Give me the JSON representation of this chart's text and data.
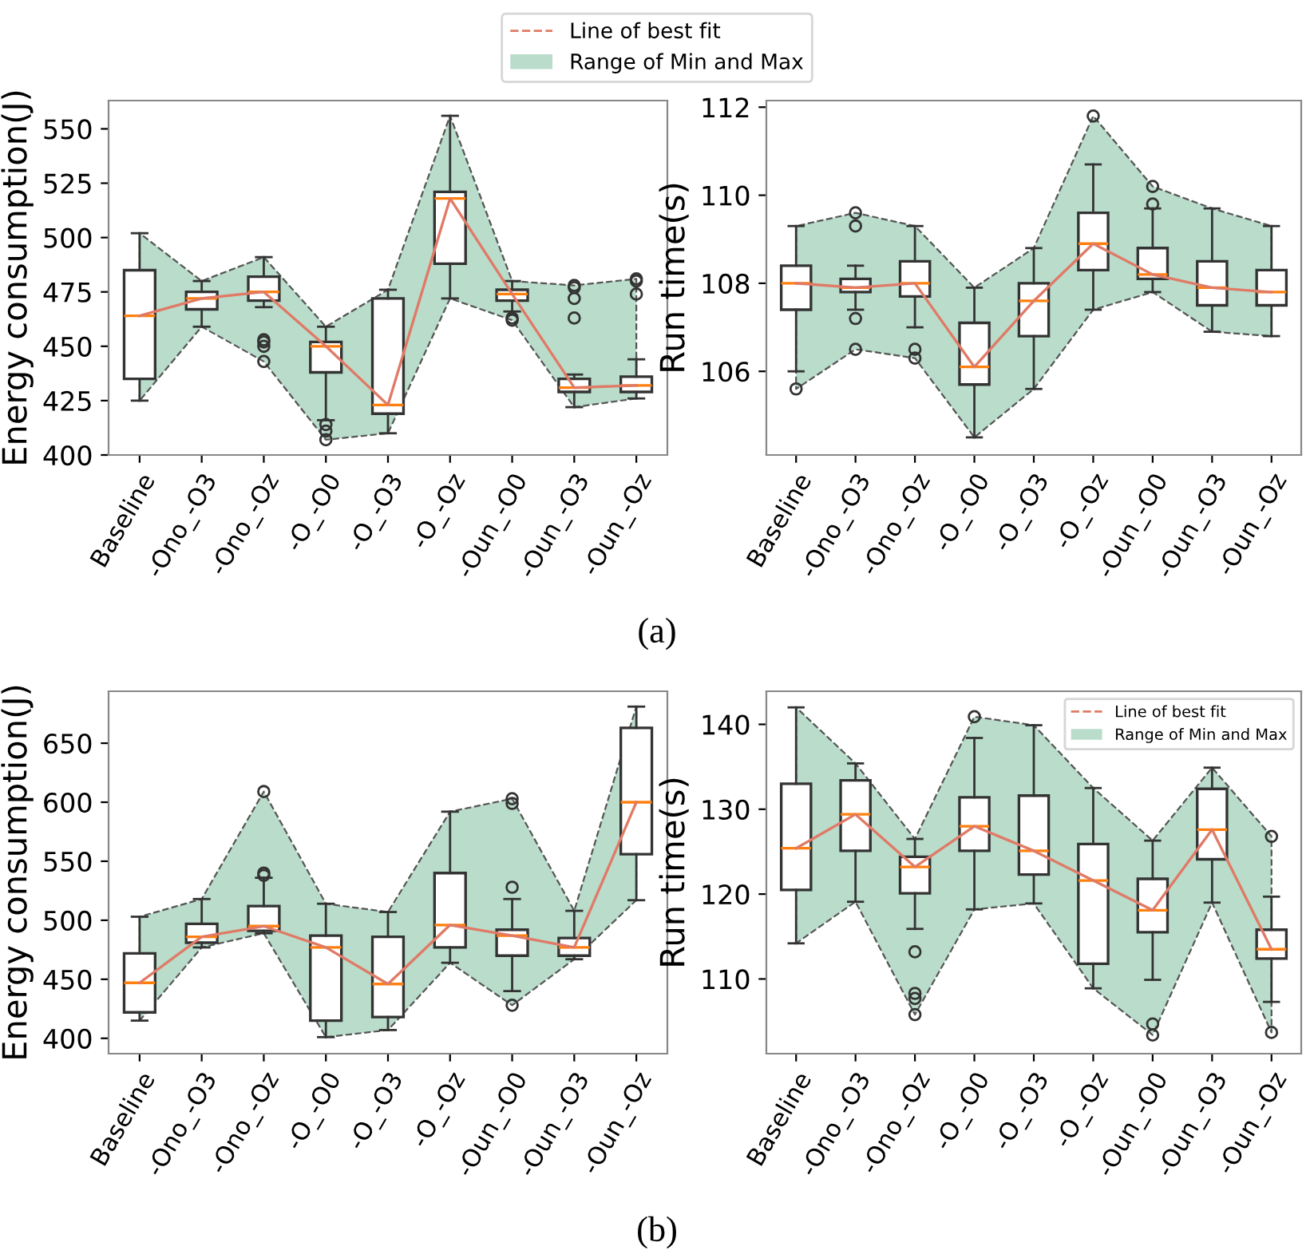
{
  "chart_data": [
    {
      "type": "box",
      "ylabel": "Energy consumption(J)",
      "legend": "top",
      "annotations": [
        "(a)",
        {
          "text": "Range of Min and Max"
        }
      ],
      "categories": [
        "Baseline",
        "-Ono_-O3",
        "-Ono_-Oz",
        "-O_-O0",
        "-O_-O3",
        "-O_-Oz",
        "-Oun_-O0",
        "-Oun_-O3",
        "-Oun_-Oz"
      ],
      "ylim": [
        400,
        563
      ],
      "yticks": [
        400,
        425,
        450,
        475,
        500,
        525,
        550
      ],
      "boxes": [
        {
          "low": 425,
          "q1": 435,
          "median": 464,
          "q3": 485,
          "high": 502
        },
        {
          "low": 459,
          "q1": 467,
          "median": 472,
          "q3": 475,
          "high": 480
        },
        {
          "low": 468,
          "q1": 471,
          "median": 475,
          "q3": 482,
          "high": 491,
          "outliers": [
            453,
            452,
            450,
            443
          ]
        },
        {
          "low": 416,
          "q1": 438,
          "median": 450,
          "q3": 452,
          "high": 459,
          "outliers": [
            414,
            411,
            407
          ]
        },
        {
          "low": 410,
          "q1": 419,
          "median": 423,
          "q3": 472,
          "high": 476
        },
        {
          "low": 472,
          "q1": 488,
          "median": 518,
          "q3": 521,
          "high": 556
        },
        {
          "low": 466,
          "q1": 471,
          "median": 474,
          "q3": 476,
          "high": 480,
          "outliers": [
            463,
            462
          ]
        },
        {
          "low": 422,
          "q1": 429,
          "median": 431,
          "q3": 435,
          "high": 437,
          "outliers": [
            478,
            477,
            472,
            463
          ]
        },
        {
          "low": 426,
          "q1": 429,
          "median": 432,
          "q3": 436,
          "high": 444,
          "outliers": [
            481,
            480,
            474
          ]
        }
      ],
      "series": [
        {
          "type": "line",
          "name": "Line of best fit",
          "color": "#e07a66",
          "values": [
            464,
            472,
            475,
            450,
            423,
            518,
            474,
            431,
            432
          ],
          "lower": [
            425,
            459,
            443,
            407,
            410,
            472,
            462,
            422,
            426
          ],
          "upper": [
            502,
            480,
            491,
            459,
            476,
            556,
            480,
            478,
            481
          ]
        }
      ]
    },
    {
      "type": "box",
      "ylabel": "Run time(s)",
      "categories": [
        "Baseline",
        "-Ono_-O3",
        "-Ono_-Oz",
        "-O_-O0",
        "-O_-O3",
        "-O_-Oz",
        "-Oun_-O0",
        "-Oun_-O3",
        "-Oun_-Oz"
      ],
      "ylim": [
        104.1,
        112.15
      ],
      "yticks": [
        106,
        108,
        110,
        112
      ],
      "boxes": [
        {
          "low": 106.0,
          "q1": 107.4,
          "median": 108.0,
          "q3": 108.4,
          "high": 109.3,
          "outliers": [
            105.6
          ]
        },
        {
          "low": 107.4,
          "q1": 107.8,
          "median": 107.9,
          "q3": 108.1,
          "high": 108.4,
          "outliers": [
            109.6,
            109.3,
            107.2,
            106.5
          ]
        },
        {
          "low": 107.0,
          "q1": 107.7,
          "median": 108.0,
          "q3": 108.5,
          "high": 109.3,
          "outliers": [
            106.5,
            106.3
          ]
        },
        {
          "low": 104.5,
          "q1": 105.7,
          "median": 106.1,
          "q3": 107.1,
          "high": 107.9
        },
        {
          "low": 105.6,
          "q1": 106.8,
          "median": 107.6,
          "q3": 108.0,
          "high": 108.8
        },
        {
          "low": 107.4,
          "q1": 108.3,
          "median": 108.9,
          "q3": 109.6,
          "high": 110.7,
          "outliers": [
            111.8
          ]
        },
        {
          "low": 107.8,
          "q1": 108.1,
          "median": 108.2,
          "q3": 108.8,
          "high": 109.7,
          "outliers": [
            110.2,
            109.8
          ]
        },
        {
          "low": 106.9,
          "q1": 107.5,
          "median": 107.9,
          "q3": 108.5,
          "high": 109.7
        },
        {
          "low": 106.8,
          "q1": 107.5,
          "median": 107.8,
          "q3": 108.3,
          "high": 109.3
        }
      ],
      "series": [
        {
          "type": "line",
          "color": "#e07a66",
          "values": [
            108.0,
            107.9,
            108.0,
            106.1,
            107.6,
            108.9,
            108.2,
            107.9,
            107.8
          ],
          "lower": [
            105.6,
            106.5,
            106.3,
            104.5,
            105.6,
            107.4,
            107.8,
            106.9,
            106.8
          ],
          "upper": [
            109.3,
            109.6,
            109.3,
            107.9,
            108.8,
            111.8,
            110.2,
            109.7,
            109.3
          ]
        }
      ]
    },
    {
      "type": "box",
      "ylabel": "Energy consumption(J)",
      "annotations": [
        "(b)"
      ],
      "categories": [
        "Baseline",
        "-Ono_-O3",
        "-Ono_-Oz",
        "-O_-O0",
        "-O_-O3",
        "-O_-Oz",
        "-Oun_-O0",
        "-Oun_-O3",
        "-Oun_-Oz"
      ],
      "ylim": [
        387,
        694
      ],
      "yticks": [
        400,
        450,
        500,
        550,
        600,
        650
      ],
      "boxes": [
        {
          "low": 415,
          "q1": 422,
          "median": 447,
          "q3": 472,
          "high": 503
        },
        {
          "low": 477,
          "q1": 481,
          "median": 486,
          "q3": 497,
          "high": 518
        },
        {
          "low": 489,
          "q1": 491,
          "median": 495,
          "q3": 512,
          "high": 536,
          "outliers": [
            609,
            540,
            538
          ]
        },
        {
          "low": 401,
          "q1": 415,
          "median": 477,
          "q3": 487,
          "high": 514
        },
        {
          "low": 407,
          "q1": 418,
          "median": 446,
          "q3": 486,
          "high": 507
        },
        {
          "low": 464,
          "q1": 477,
          "median": 496,
          "q3": 540,
          "high": 592
        },
        {
          "low": 440,
          "q1": 470,
          "median": 487,
          "q3": 492,
          "high": 518,
          "outliers": [
            528,
            603,
            599,
            428
          ]
        },
        {
          "low": 467,
          "q1": 470,
          "median": 477,
          "q3": 485,
          "high": 508
        },
        {
          "low": 517,
          "q1": 556,
          "median": 600,
          "q3": 663,
          "high": 681
        }
      ],
      "series": [
        {
          "type": "line",
          "color": "#e07a66",
          "values": [
            447,
            486,
            495,
            477,
            446,
            496,
            487,
            477,
            600
          ],
          "lower": [
            415,
            477,
            489,
            401,
            407,
            464,
            428,
            467,
            517
          ],
          "upper": [
            503,
            518,
            609,
            514,
            507,
            592,
            603,
            508,
            681
          ]
        }
      ]
    },
    {
      "type": "box",
      "ylabel": "Run time(s)",
      "legend": "top right",
      "annotations": [
        {
          "text": "Range of Min and Max"
        }
      ],
      "categories": [
        "Baseline",
        "-Ono_-O3",
        "-Ono_-Oz",
        "-O_-O0",
        "-O_-O3",
        "-O_-Oz",
        "-Oun_-O0",
        "-Oun_-O3",
        "-Oun_-Oz"
      ],
      "ylim": [
        101.2,
        143.9
      ],
      "yticks": [
        110,
        120,
        130,
        140
      ],
      "boxes": [
        {
          "low": 114.2,
          "q1": 120.5,
          "median": 125.4,
          "q3": 133.0,
          "high": 142.0
        },
        {
          "low": 119.1,
          "q1": 125.1,
          "median": 129.4,
          "q3": 133.4,
          "high": 135.4
        },
        {
          "low": 115.9,
          "q1": 120.1,
          "median": 123.2,
          "q3": 124.4,
          "high": 126.5,
          "outliers": [
            113.2,
            108.3,
            107.7,
            105.8
          ]
        },
        {
          "low": 118.2,
          "q1": 125.1,
          "median": 128.0,
          "q3": 131.4,
          "high": 138.4,
          "outliers": [
            140.9
          ]
        },
        {
          "low": 118.9,
          "q1": 122.3,
          "median": 125.1,
          "q3": 131.6,
          "high": 139.9
        },
        {
          "low": 108.9,
          "q1": 111.8,
          "median": 121.6,
          "q3": 125.9,
          "high": 132.5
        },
        {
          "low": 109.9,
          "q1": 115.5,
          "median": 118.1,
          "q3": 121.8,
          "high": 126.3,
          "outliers": [
            104.7,
            103.4
          ]
        },
        {
          "low": 119.0,
          "q1": 124.1,
          "median": 127.6,
          "q3": 132.4,
          "high": 134.9
        },
        {
          "low": 107.3,
          "q1": 112.4,
          "median": 113.5,
          "q3": 115.8,
          "high": 119.7,
          "outliers": [
            103.7,
            126.8
          ]
        }
      ],
      "series": [
        {
          "type": "line",
          "name": "Line of best fit",
          "color": "#e07a66",
          "values": [
            125.4,
            129.4,
            123.2,
            128.0,
            125.1,
            121.6,
            118.1,
            127.6,
            113.5
          ],
          "lower": [
            114.2,
            119.1,
            105.8,
            118.2,
            118.9,
            108.9,
            103.4,
            119.0,
            103.7
          ],
          "upper": [
            142.0,
            135.4,
            126.5,
            140.9,
            139.9,
            132.5,
            126.3,
            134.9,
            126.8
          ]
        }
      ]
    }
  ]
}
